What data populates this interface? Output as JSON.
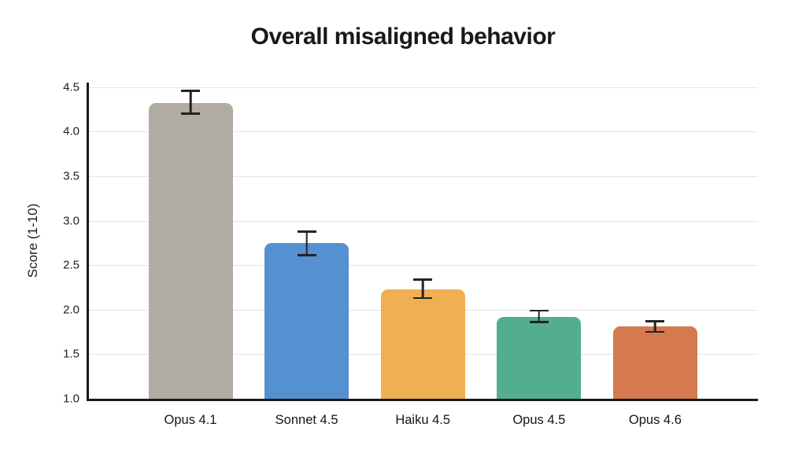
{
  "title": "Overall misaligned behavior",
  "chart_data": {
    "type": "bar",
    "title": "Overall misaligned behavior",
    "xlabel": "",
    "ylabel": "Score (1-10)",
    "categories": [
      "Opus 4.1",
      "Sonnet 4.5",
      "Haiku 4.5",
      "Opus 4.5",
      "Opus 4.6"
    ],
    "values": [
      4.32,
      2.75,
      2.23,
      1.92,
      1.81
    ],
    "error_low": [
      4.19,
      2.6,
      2.12,
      1.85,
      1.74
    ],
    "error_high": [
      4.47,
      2.89,
      2.35,
      2.0,
      1.88
    ],
    "bar_colors": [
      "#b1aca3",
      "#5590d0",
      "#efb052",
      "#52ae8e",
      "#d5794f"
    ],
    "ylim": [
      1.0,
      4.55
    ],
    "yticks": [
      1.0,
      1.5,
      2.0,
      2.5,
      3.0,
      3.5,
      4.0,
      4.5
    ],
    "grid": true,
    "legend_position": "none",
    "error_bar_color": "#242424",
    "gridline_color": "#e8e5e0",
    "axis_color": "#1a1a1a",
    "background_color": "#ffffff"
  }
}
